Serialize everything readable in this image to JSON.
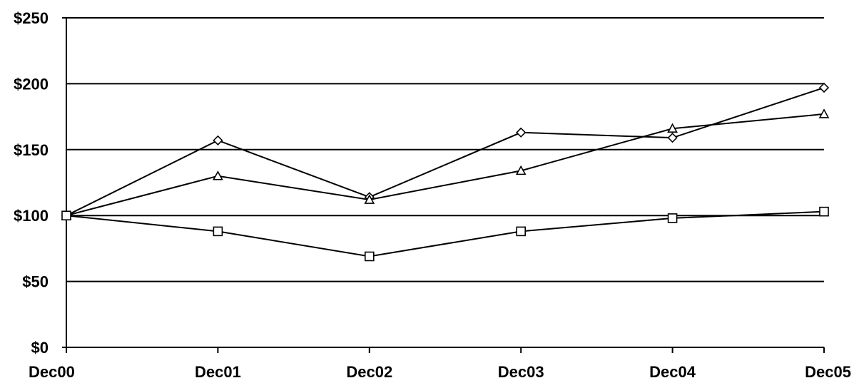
{
  "chart_data": {
    "type": "line",
    "title": "",
    "xlabel": "",
    "ylabel": "",
    "categories": [
      "Dec00",
      "Dec01",
      "Dec02",
      "Dec03",
      "Dec04",
      "Dec05"
    ],
    "y_tick_labels": [
      "$0",
      "$50",
      "$100",
      "$150",
      "$200",
      "$250"
    ],
    "y_ticks": [
      0,
      50,
      100,
      150,
      200,
      250
    ],
    "ylim": [
      0,
      250
    ],
    "grid": true,
    "legend": "none",
    "series": [
      {
        "marker": "diamond",
        "values": [
          100,
          157,
          114,
          163,
          159,
          197
        ]
      },
      {
        "marker": "triangle",
        "values": [
          100,
          130,
          112,
          134,
          166,
          177
        ]
      },
      {
        "marker": "square",
        "values": [
          100,
          88,
          69,
          88,
          98,
          103
        ]
      }
    ]
  }
}
